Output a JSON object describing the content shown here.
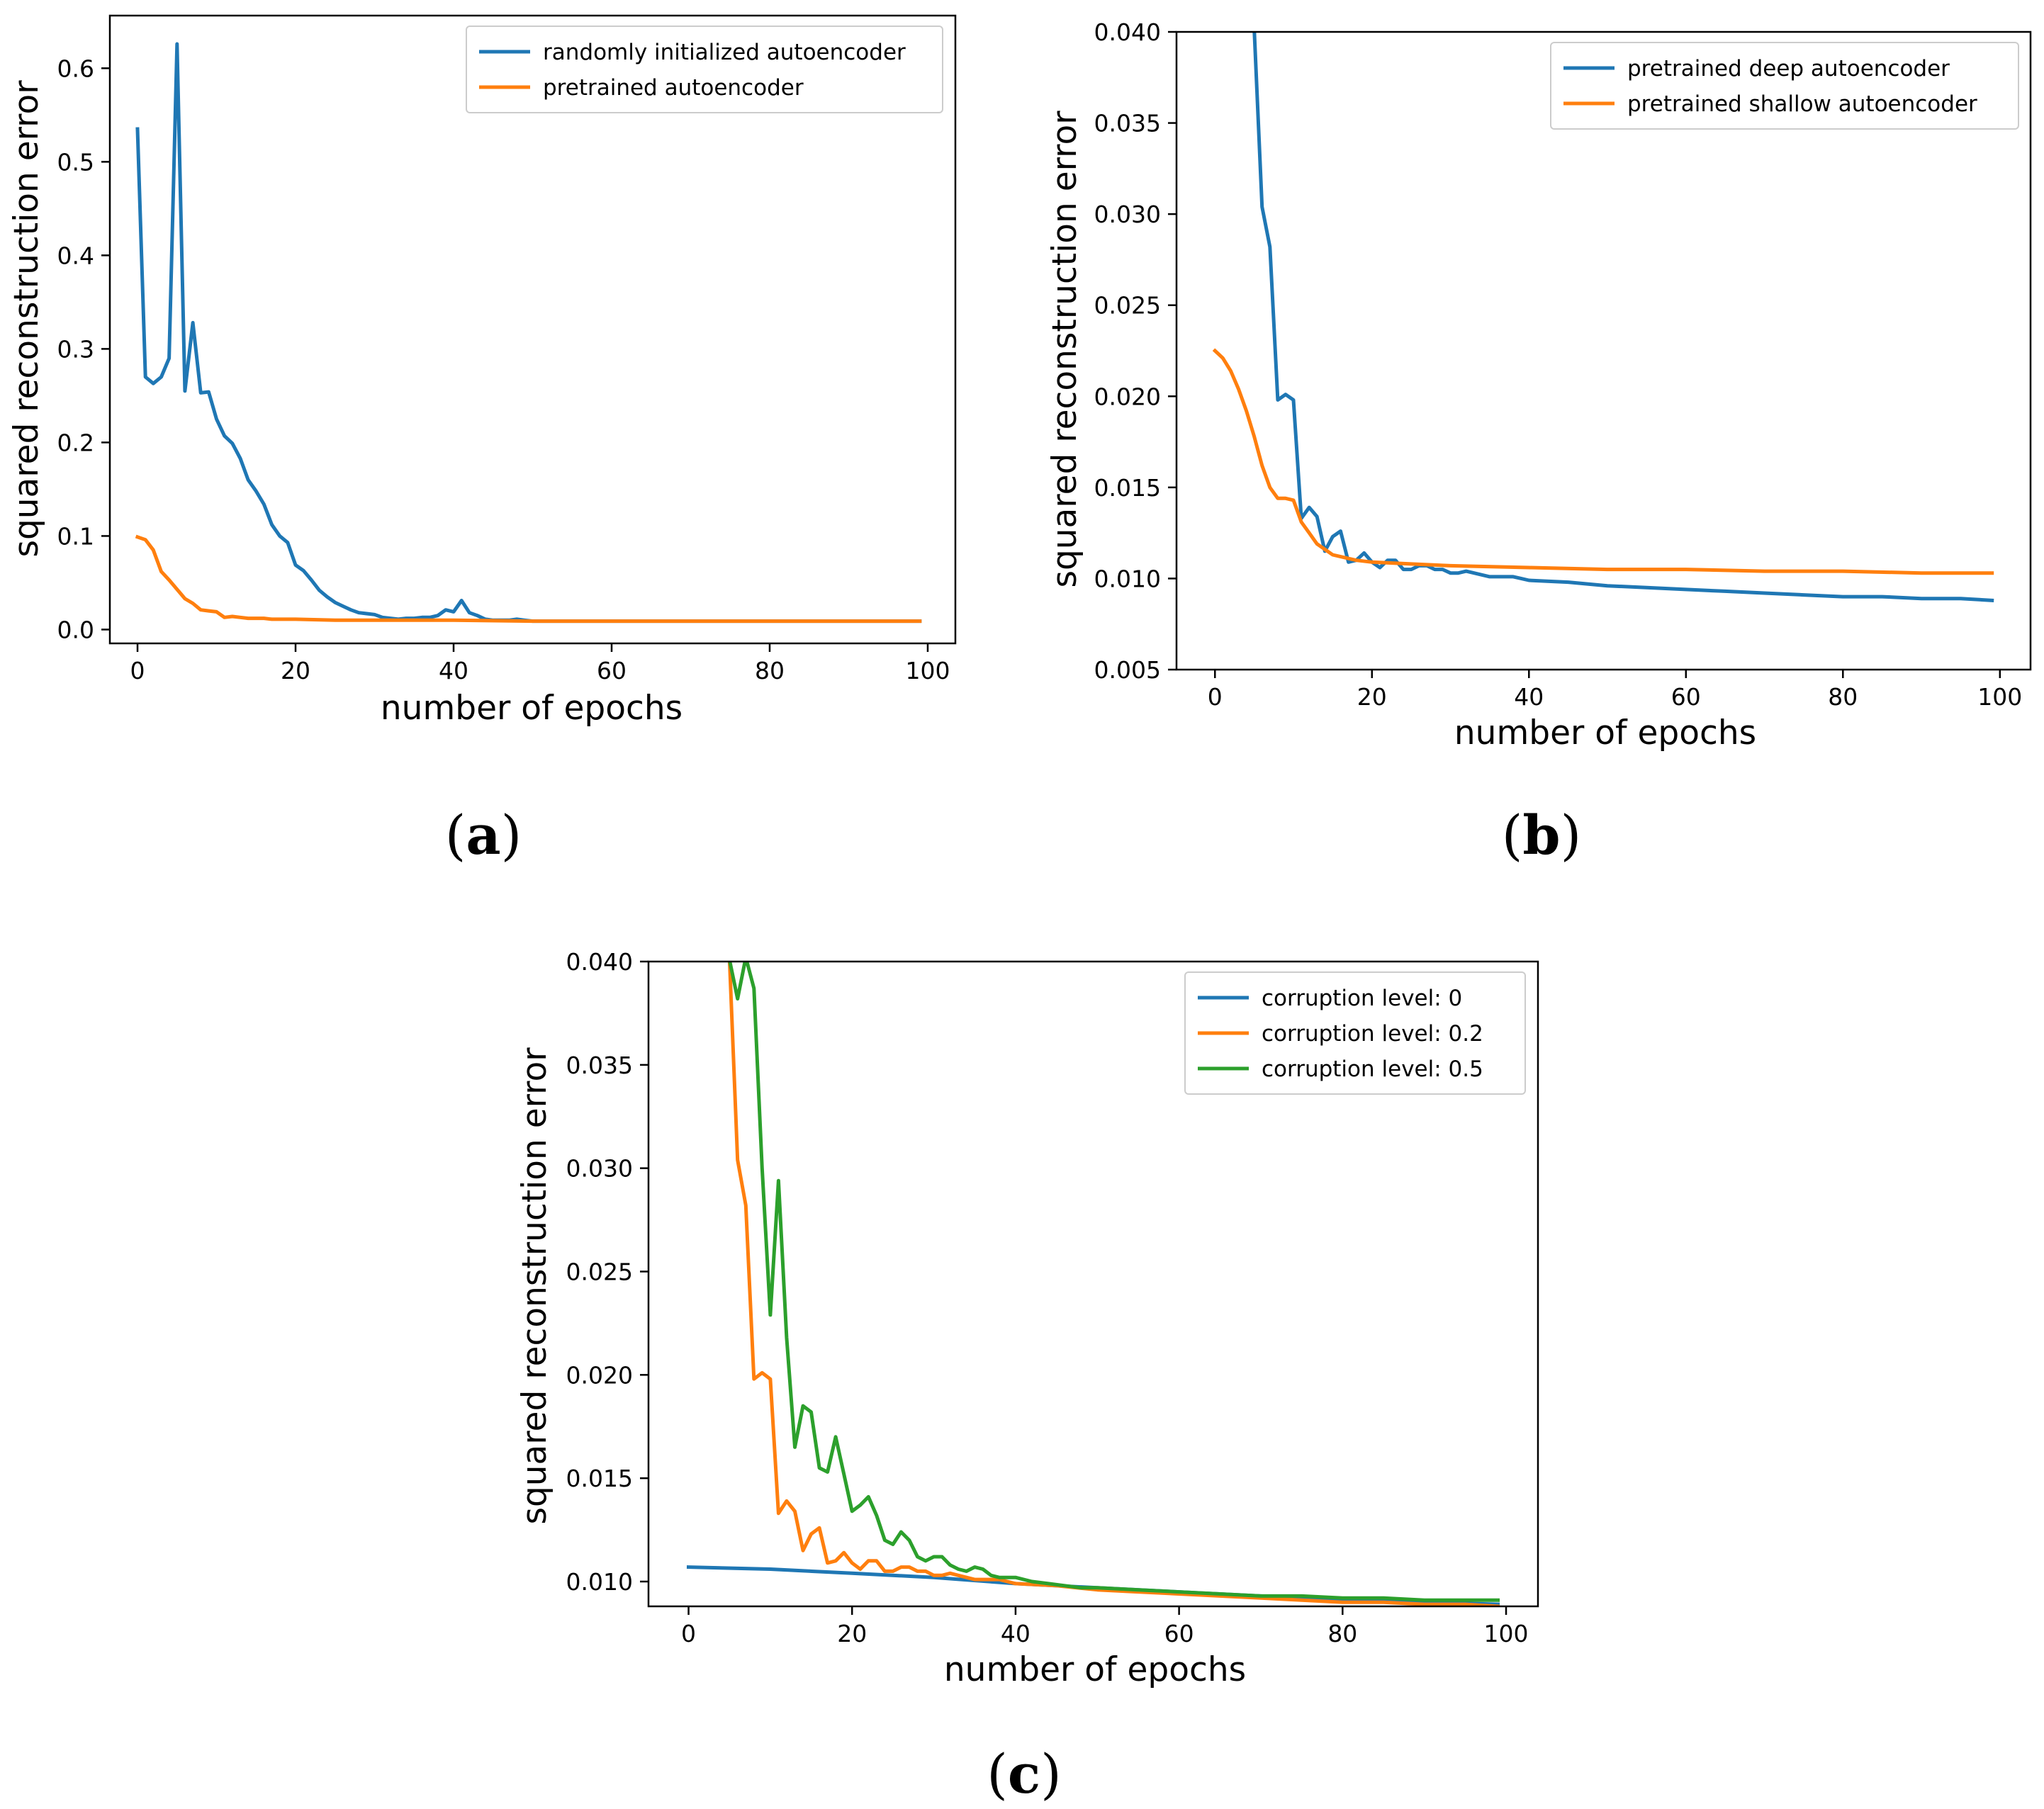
{
  "chart_data": [
    {
      "type": "line",
      "panel_label": "a",
      "xlabel": "number of epochs",
      "ylabel": "squared reconstruction error",
      "xlim": [
        -3.5,
        103.5
      ],
      "ylim": [
        -0.0148,
        0.6563
      ],
      "xticks": [
        0,
        20,
        40,
        60,
        80,
        100
      ],
      "xtick_labels": [
        "0",
        "20",
        "40",
        "60",
        "80",
        "100"
      ],
      "yticks": [
        0.0,
        0.1,
        0.2,
        0.3,
        0.4,
        0.5,
        0.6
      ],
      "ytick_labels": [
        "0.0",
        "0.1",
        "0.2",
        "0.3",
        "0.4",
        "0.5",
        "0.6"
      ],
      "legend_position": "top-right",
      "series": [
        {
          "name": "randomly initialized autoencoder",
          "color": "#1f77b4",
          "x": [
            0,
            1,
            2,
            3,
            4,
            5,
            6,
            7,
            8,
            9,
            10,
            11,
            12,
            13,
            14,
            15,
            16,
            17,
            18,
            19,
            20,
            21,
            22,
            23,
            24,
            25,
            26,
            27,
            28,
            29,
            30,
            31,
            32,
            33,
            34,
            35,
            36,
            37,
            38,
            39,
            40,
            41,
            42,
            43,
            44,
            45,
            46,
            47,
            48,
            49,
            50,
            55,
            60,
            70,
            80,
            90,
            99
          ],
          "values": [
            0.535,
            0.27,
            0.263,
            0.27,
            0.29,
            0.626,
            0.255,
            0.328,
            0.253,
            0.254,
            0.225,
            0.207,
            0.199,
            0.183,
            0.16,
            0.148,
            0.134,
            0.112,
            0.1,
            0.093,
            0.069,
            0.063,
            0.053,
            0.042,
            0.035,
            0.029,
            0.025,
            0.021,
            0.018,
            0.017,
            0.016,
            0.013,
            0.012,
            0.011,
            0.012,
            0.012,
            0.013,
            0.013,
            0.015,
            0.021,
            0.019,
            0.031,
            0.018,
            0.015,
            0.011,
            0.01,
            0.01,
            0.01,
            0.011,
            0.01,
            0.009,
            0.009,
            0.009,
            0.009,
            0.009,
            0.009,
            0.009
          ]
        },
        {
          "name": "pretrained autoencoder",
          "color": "#ff7f0e",
          "x": [
            0,
            1,
            2,
            3,
            4,
            5,
            6,
            7,
            8,
            9,
            10,
            11,
            12,
            13,
            14,
            15,
            16,
            17,
            18,
            20,
            25,
            30,
            40,
            50,
            60,
            70,
            80,
            90,
            99
          ],
          "values": [
            0.099,
            0.096,
            0.085,
            0.062,
            0.053,
            0.043,
            0.033,
            0.028,
            0.021,
            0.02,
            0.019,
            0.013,
            0.014,
            0.013,
            0.012,
            0.012,
            0.012,
            0.011,
            0.011,
            0.011,
            0.01,
            0.01,
            0.01,
            0.009,
            0.009,
            0.009,
            0.009,
            0.009,
            0.009
          ]
        }
      ]
    },
    {
      "type": "line",
      "panel_label": "b",
      "xlabel": "number of epochs",
      "ylabel": "squared reconstruction error",
      "xlim": [
        -4.9,
        103.9
      ],
      "ylim": [
        0.005,
        0.04
      ],
      "xticks": [
        0,
        20,
        40,
        60,
        80,
        100
      ],
      "xtick_labels": [
        "0",
        "20",
        "40",
        "60",
        "80",
        "100"
      ],
      "yticks": [
        0.005,
        0.01,
        0.015,
        0.02,
        0.025,
        0.03,
        0.035,
        0.04
      ],
      "ytick_labels": [
        "0.005",
        "0.010",
        "0.015",
        "0.020",
        "0.025",
        "0.030",
        "0.035",
        "0.040"
      ],
      "legend_position": "top-right",
      "series": [
        {
          "name": "pretrained deep autoencoder",
          "color": "#1f77b4",
          "x": [
            5,
            6,
            7,
            8,
            9,
            10,
            11,
            12,
            13,
            14,
            15,
            16,
            17,
            18,
            19,
            20,
            21,
            22,
            23,
            24,
            25,
            26,
            27,
            28,
            29,
            30,
            31,
            32,
            33,
            34,
            35,
            36,
            37,
            38,
            39,
            40,
            45,
            50,
            55,
            60,
            65,
            70,
            75,
            80,
            85,
            90,
            95,
            99
          ],
          "values": [
            0.0402,
            0.0304,
            0.0282,
            0.0198,
            0.0201,
            0.0198,
            0.0133,
            0.0139,
            0.0134,
            0.0115,
            0.0123,
            0.0126,
            0.0109,
            0.011,
            0.0114,
            0.0109,
            0.0106,
            0.011,
            0.011,
            0.0105,
            0.0105,
            0.0107,
            0.0107,
            0.0105,
            0.0105,
            0.0103,
            0.0103,
            0.0104,
            0.0103,
            0.0102,
            0.0101,
            0.0101,
            0.0101,
            0.0101,
            0.01,
            0.0099,
            0.0098,
            0.0096,
            0.0095,
            0.0094,
            0.0093,
            0.0092,
            0.0091,
            0.009,
            0.009,
            0.0089,
            0.0089,
            0.0088
          ]
        },
        {
          "name": "pretrained shallow autoencoder",
          "color": "#ff7f0e",
          "x": [
            0,
            1,
            2,
            3,
            4,
            5,
            6,
            7,
            8,
            9,
            10,
            11,
            12,
            13,
            14,
            15,
            16,
            18,
            20,
            25,
            30,
            40,
            50,
            60,
            70,
            80,
            90,
            99
          ],
          "values": [
            0.0225,
            0.0221,
            0.0214,
            0.0204,
            0.0192,
            0.0178,
            0.0162,
            0.015,
            0.0144,
            0.0144,
            0.0143,
            0.0131,
            0.0125,
            0.0119,
            0.0116,
            0.0113,
            0.0112,
            0.011,
            0.0109,
            0.0108,
            0.0107,
            0.0106,
            0.0105,
            0.0105,
            0.0104,
            0.0104,
            0.0103,
            0.0103
          ]
        }
      ]
    },
    {
      "type": "line",
      "panel_label": "c",
      "xlabel": "number of epochs",
      "ylabel": "squared reconstruction error",
      "xlim": [
        -4.9,
        103.9
      ],
      "ylim": [
        0.0088,
        0.04
      ],
      "xticks": [
        0,
        20,
        40,
        60,
        80,
        100
      ],
      "xtick_labels": [
        "0",
        "20",
        "40",
        "60",
        "80",
        "100"
      ],
      "yticks": [
        0.01,
        0.015,
        0.02,
        0.025,
        0.03,
        0.035,
        0.04
      ],
      "ytick_labels": [
        "0.010",
        "0.015",
        "0.020",
        "0.025",
        "0.030",
        "0.035",
        "0.040"
      ],
      "legend_position": "top-right",
      "series": [
        {
          "name": "corruption level: 0",
          "color": "#1f77b4",
          "x": [
            0,
            10,
            20,
            30,
            40,
            50,
            60,
            70,
            80,
            90,
            99
          ],
          "values": [
            0.0107,
            0.0106,
            0.0104,
            0.0102,
            0.0099,
            0.0097,
            0.0095,
            0.0093,
            0.0091,
            0.009,
            0.0089
          ]
        },
        {
          "name": "corruption level: 0.2",
          "color": "#ff7f0e",
          "x": [
            5,
            6,
            7,
            8,
            9,
            10,
            11,
            12,
            13,
            14,
            15,
            16,
            17,
            18,
            19,
            20,
            21,
            22,
            23,
            24,
            25,
            26,
            27,
            28,
            29,
            30,
            31,
            32,
            33,
            34,
            35,
            36,
            37,
            38,
            39,
            40,
            45,
            50,
            55,
            60,
            65,
            70,
            75,
            80,
            85,
            90,
            95,
            99
          ],
          "values": [
            0.0402,
            0.0304,
            0.0282,
            0.0198,
            0.0201,
            0.0198,
            0.0133,
            0.0139,
            0.0134,
            0.0115,
            0.0123,
            0.0126,
            0.0109,
            0.011,
            0.0114,
            0.0109,
            0.0106,
            0.011,
            0.011,
            0.0105,
            0.0105,
            0.0107,
            0.0107,
            0.0105,
            0.0105,
            0.0103,
            0.0103,
            0.0104,
            0.0103,
            0.0102,
            0.0101,
            0.0101,
            0.0101,
            0.0101,
            0.01,
            0.0099,
            0.0098,
            0.0096,
            0.0095,
            0.0094,
            0.0093,
            0.0092,
            0.0091,
            0.009,
            0.009,
            0.0089,
            0.0089,
            0.0088
          ]
        },
        {
          "name": "corruption level: 0.5",
          "color": "#2ca02c",
          "x": [
            5,
            6,
            7,
            8,
            9,
            10,
            11,
            12,
            13,
            14,
            15,
            16,
            17,
            18,
            19,
            20,
            21,
            22,
            23,
            24,
            25,
            26,
            27,
            28,
            29,
            30,
            31,
            32,
            33,
            34,
            35,
            36,
            37,
            38,
            39,
            40,
            42,
            44,
            46,
            48,
            50,
            55,
            60,
            65,
            70,
            75,
            80,
            85,
            90,
            95,
            99
          ],
          "values": [
            0.0401,
            0.0382,
            0.0402,
            0.0387,
            0.03,
            0.0229,
            0.0294,
            0.0218,
            0.0165,
            0.0185,
            0.0182,
            0.0155,
            0.0153,
            0.017,
            0.0152,
            0.0134,
            0.0137,
            0.0141,
            0.0132,
            0.012,
            0.0118,
            0.0124,
            0.012,
            0.0112,
            0.011,
            0.0112,
            0.0112,
            0.0108,
            0.0106,
            0.0105,
            0.0107,
            0.0106,
            0.0103,
            0.0102,
            0.0102,
            0.0102,
            0.01,
            0.0099,
            0.0098,
            0.0097,
            0.0097,
            0.0096,
            0.0095,
            0.0094,
            0.0093,
            0.0093,
            0.0092,
            0.0092,
            0.0091,
            0.0091,
            0.0091
          ]
        }
      ]
    }
  ]
}
